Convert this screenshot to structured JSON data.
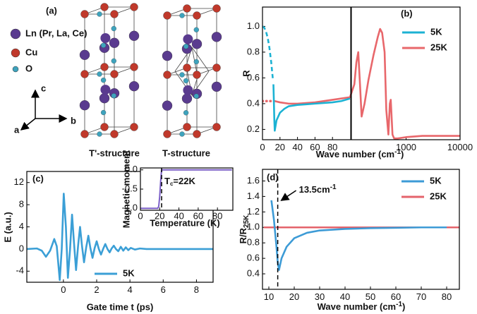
{
  "diagram": {
    "panel_label": "(a)",
    "legend": [
      {
        "label": "Ln (Pr, La, Ce)",
        "color": "#5a3b8f"
      },
      {
        "label": "Cu",
        "color": "#c0392b"
      },
      {
        "label": "O",
        "color": "#3ea3bd"
      }
    ],
    "axes": [
      "c",
      "b",
      "a"
    ],
    "structures": [
      "T'-structure",
      "T-structure"
    ]
  },
  "chart_data": [
    {
      "type": "line",
      "panel_label": "(b)",
      "xlabel": {
        "parts": [
          "Wave number  (cm",
          "-1",
          ")"
        ],
        "script": "sup"
      },
      "ylabel": "R",
      "xscale": "linear-log",
      "x_break": 100,
      "xlim": [
        0,
        10000
      ],
      "xticks": [
        0,
        20,
        40,
        60,
        80,
        1000,
        10000
      ],
      "ylim": [
        0.12,
        1.15
      ],
      "yticks": [
        0.2,
        0.4,
        0.6,
        0.8,
        {
          "value": 1.0,
          "label": "1.0"
        }
      ],
      "legend": "upper right",
      "series": [
        {
          "name": "5K",
          "color": "#1cb2d3",
          "x": [
            12.5,
            13,
            13.5,
            14,
            16,
            20,
            25,
            30,
            40,
            50,
            60,
            70,
            80,
            90,
            100
          ],
          "values": [
            0.55,
            0.42,
            0.28,
            0.19,
            0.27,
            0.33,
            0.36,
            0.38,
            0.39,
            0.395,
            0.4,
            0.405,
            0.41,
            0.42,
            0.44
          ]
        },
        {
          "color": "#1cb2d3",
          "dash": "dashed",
          "x": [
            0,
            2,
            4,
            6,
            8,
            10,
            12
          ],
          "values": [
            1.0,
            0.99,
            0.96,
            0.91,
            0.83,
            0.72,
            0.58
          ]
        },
        {
          "name": "25K",
          "color": "#e8676b",
          "x": [
            12,
            14,
            20,
            30,
            40,
            60,
            80,
            100,
            110,
            120,
            130,
            140,
            150,
            170,
            200,
            250,
            300,
            330,
            360,
            400,
            430,
            470,
            500,
            520,
            560,
            600,
            700,
            1000,
            2000,
            5000,
            10000
          ],
          "values": [
            0.42,
            0.42,
            0.41,
            0.4,
            0.4,
            0.41,
            0.43,
            0.45,
            0.55,
            0.72,
            0.8,
            0.55,
            0.3,
            0.4,
            0.58,
            0.78,
            0.92,
            0.98,
            0.95,
            0.8,
            0.35,
            0.16,
            0.4,
            0.43,
            0.16,
            0.13,
            0.13,
            0.14,
            0.15,
            0.15,
            0.15
          ]
        },
        {
          "color": "#e8676b",
          "dash": "dotted",
          "x": [
            0,
            2,
            4,
            6,
            8,
            10
          ],
          "values": [
            0.42,
            0.42,
            0.42,
            0.42,
            0.42,
            0.42
          ]
        }
      ]
    },
    {
      "type": "line",
      "panel_label": "(c)",
      "xlabel": "Gate time t (ps)",
      "ylabel": "E (a.u.)",
      "xlim": [
        -2.2,
        9
      ],
      "xticks": [
        0,
        2,
        4,
        6,
        8
      ],
      "ylim": [
        -6,
        14
      ],
      "yticks": [
        -4,
        0,
        4,
        8,
        12
      ],
      "legend": "lower center",
      "series": [
        {
          "name": "5K",
          "color": "#3b9fd6",
          "x": [
            -2.2,
            -1.6,
            -1.3,
            -1.05,
            -0.8,
            -0.55,
            -0.4,
            -0.22,
            -0.1,
            0.02,
            0.15,
            0.27,
            0.4,
            0.52,
            0.64,
            0.76,
            0.88,
            1.0,
            1.12,
            1.24,
            1.37,
            1.5,
            1.62,
            1.75,
            1.88,
            2.0,
            2.13,
            2.26,
            2.4,
            2.52,
            2.65,
            2.78,
            2.9,
            3.03,
            3.16,
            3.3,
            3.45,
            3.6,
            3.75,
            3.9,
            4.05,
            4.3,
            4.6,
            5,
            9
          ],
          "values": [
            0,
            0.1,
            -0.3,
            -1.4,
            -0.3,
            1.8,
            0.5,
            -5.6,
            0,
            10,
            4,
            -5.2,
            0,
            6.2,
            1,
            -3.8,
            0.5,
            4.0,
            0.5,
            -2.4,
            0.3,
            2.4,
            0.2,
            -1.6,
            0.2,
            1.4,
            0,
            -1.0,
            0.1,
            0.9,
            0,
            -0.6,
            0.1,
            0.6,
            0,
            -0.4,
            0.4,
            -0.3,
            0.3,
            -0.2,
            0.2,
            -0.1,
            0.1,
            0,
            0
          ]
        }
      ]
    },
    {
      "type": "line",
      "inset": true,
      "xlabel": "Temperature (K)",
      "ylabel": "Magnetic moment",
      "xlim": [
        0,
        96
      ],
      "xticks": [
        0,
        20,
        40,
        60,
        80
      ],
      "ylim": [
        -1.05,
        0.05
      ],
      "yticks": [
        {
          "value": -1.0,
          "label": "-1.0"
        },
        -0.5,
        {
          "value": 0.0,
          "label": "0.0"
        }
      ],
      "annotation": {
        "parts": [
          "T",
          "c",
          "=22K"
        ],
        "script": "sub"
      },
      "marker_x": 22,
      "series": [
        {
          "color": "#7b5fc7",
          "x": [
            0,
            10,
            18,
            19,
            20,
            21,
            22,
            30,
            60,
            95
          ],
          "values": [
            -1,
            -1,
            -1,
            -0.95,
            -0.7,
            -0.3,
            0,
            0,
            0,
            0
          ]
        }
      ]
    },
    {
      "type": "line",
      "panel_label": "(d)",
      "xlabel": {
        "parts": [
          "Wave number  (cm",
          "-1",
          ")"
        ],
        "script": "sup"
      },
      "ylabel": {
        "parts": [
          "R/R",
          "25K"
        ],
        "script": "sub"
      },
      "xlim": [
        7.5,
        85
      ],
      "xticks": [
        10,
        20,
        30,
        40,
        50,
        60,
        70,
        80
      ],
      "ylim": [
        0.2,
        1.75
      ],
      "yticks": [
        0.4,
        0.6,
        0.8,
        {
          "value": 1.0,
          "label": "1.0"
        },
        1.2,
        1.4,
        1.6
      ],
      "legend": "upper right",
      "annotation": {
        "parts": [
          "13.5cm",
          "-1"
        ],
        "script": "sup"
      },
      "marker_x": 13.5,
      "series": [
        {
          "name": "5K",
          "color": "#3d9bd6",
          "x": [
            11,
            12,
            13,
            13.5,
            14,
            15,
            17,
            20,
            25,
            30,
            40,
            50,
            60,
            70,
            80
          ],
          "values": [
            1.35,
            1.1,
            0.75,
            0.55,
            0.45,
            0.6,
            0.75,
            0.86,
            0.93,
            0.96,
            0.98,
            0.99,
            0.995,
            1.0,
            1.0
          ]
        },
        {
          "name": "25K",
          "color": "#e4636b",
          "x": [
            8,
            20,
            40,
            60,
            80,
            85
          ],
          "values": [
            1.0,
            1.0,
            1.0,
            1.0,
            1.0,
            1.0
          ]
        }
      ]
    }
  ]
}
